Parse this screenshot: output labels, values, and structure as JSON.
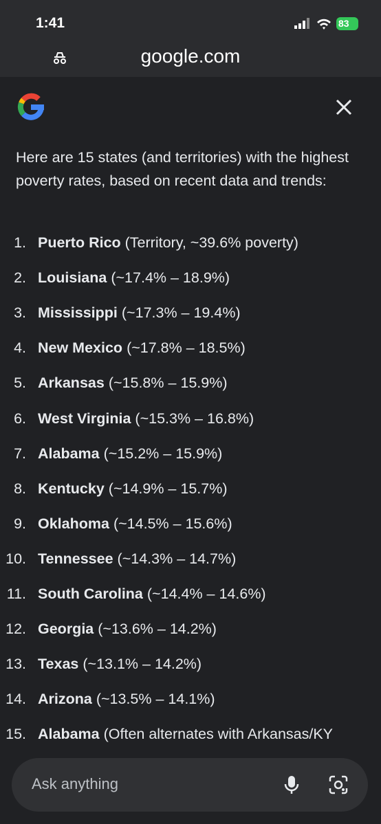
{
  "status_bar": {
    "time": "1:41",
    "battery": "83"
  },
  "address_bar": {
    "url": "google.com"
  },
  "answer": {
    "intro": "Here are 15 states (and territories) with the highest poverty rates, based on recent data and trends:",
    "items": [
      {
        "number": "1.",
        "name": "Puerto Rico",
        "detail": "(Territory, ~39.6% poverty)"
      },
      {
        "number": "2.",
        "name": "Louisiana",
        "detail": "(~17.4% – 18.9%)"
      },
      {
        "number": "3.",
        "name": "Mississippi",
        "detail": "(~17.3% – 19.4%)"
      },
      {
        "number": "4.",
        "name": "New Mexico",
        "detail": "(~17.8% – 18.5%)"
      },
      {
        "number": "5.",
        "name": "Arkansas",
        "detail": "(~15.8% – 15.9%)"
      },
      {
        "number": "6.",
        "name": "West Virginia",
        "detail": "(~15.3% – 16.8%)"
      },
      {
        "number": "7.",
        "name": "Alabama",
        "detail": "(~15.2% – 15.9%)"
      },
      {
        "number": "8.",
        "name": "Kentucky",
        "detail": "(~14.9% – 15.7%)"
      },
      {
        "number": "9.",
        "name": "Oklahoma",
        "detail": "(~14.5% – 15.6%)"
      },
      {
        "number": "10.",
        "name": "Tennessee",
        "detail": "(~14.3% – 14.7%)"
      },
      {
        "number": "11.",
        "name": "South Carolina",
        "detail": "(~14.4% – 14.6%)"
      },
      {
        "number": "12.",
        "name": "Georgia",
        "detail": "(~13.6% – 14.2%)"
      },
      {
        "number": "13.",
        "name": "Texas",
        "detail": "(~13.1% – 14.2%)"
      },
      {
        "number": "14.",
        "name": "Arizona",
        "detail": "(~13.5% – 14.1%)"
      },
      {
        "number": "15.",
        "name": "Alabama",
        "detail": "(Often alternates with Arkansas/KY"
      }
    ]
  },
  "input": {
    "placeholder": "Ask anything"
  }
}
